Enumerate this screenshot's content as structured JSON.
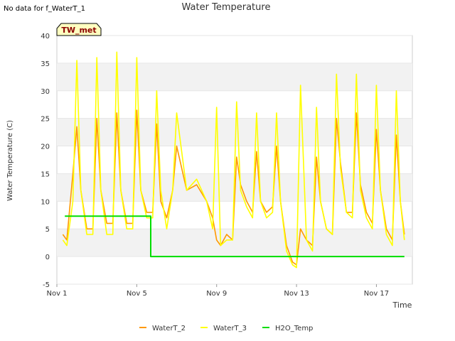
{
  "page": {
    "no_data_note": "No data for f_WaterT_1"
  },
  "chart_data": {
    "type": "line",
    "title": "Water Temperature",
    "xlabel": "Time",
    "ylabel": "Water Temperature (C)",
    "xlim": [
      "Nov 1",
      "Nov 18.8"
    ],
    "ylim": [
      -5,
      40
    ],
    "x_ticks": [
      "Nov 1",
      "Nov 5",
      "Nov 9",
      "Nov 13",
      "Nov 17"
    ],
    "y_ticks": [
      -5,
      0,
      5,
      10,
      15,
      20,
      25,
      30,
      35,
      40
    ],
    "grid": "horizontal alternating bands",
    "station_badge": "TW_met",
    "legend_position": "bottom-center",
    "colors": {
      "WaterT_2": "#ff9900",
      "WaterT_3": "#ffff00",
      "H2O_Temp": "#00dd00",
      "badge_fill": "#ffffc0",
      "badge_text": "#8b0000"
    },
    "series": [
      {
        "name": "WaterT_2",
        "x": [
          "Nov 1.3",
          "Nov 1.5",
          "Nov 1.8",
          "Nov 2.0",
          "Nov 2.2",
          "Nov 2.5",
          "Nov 2.8",
          "Nov 3.0",
          "Nov 3.2",
          "Nov 3.5",
          "Nov 3.8",
          "Nov 4.0",
          "Nov 4.2",
          "Nov 4.5",
          "Nov 4.8",
          "Nov 5.0",
          "Nov 5.2",
          "Nov 5.5",
          "Nov 5.8",
          "Nov 6.0",
          "Nov 6.2",
          "Nov 6.5",
          "Nov 6.8",
          "Nov 7.0",
          "Nov 7.5",
          "Nov 8.0",
          "Nov 8.5",
          "Nov 8.8",
          "Nov 9.0",
          "Nov 9.2",
          "Nov 9.5",
          "Nov 9.8",
          "Nov 10.0",
          "Nov 10.2",
          "Nov 10.5",
          "Nov 10.8",
          "Nov 11.0",
          "Nov 11.2",
          "Nov 11.5",
          "Nov 11.8",
          "Nov 12.0",
          "Nov 12.2",
          "Nov 12.5",
          "Nov 12.8",
          "Nov 13.0",
          "Nov 13.2",
          "Nov 13.5",
          "Nov 13.8",
          "Nov 14.0",
          "Nov 14.2",
          "Nov 14.5",
          "Nov 14.8",
          "Nov 15.0",
          "Nov 15.2",
          "Nov 15.5",
          "Nov 15.8",
          "Nov 16.0",
          "Nov 16.2",
          "Nov 16.5",
          "Nov 16.8",
          "Nov 17.0",
          "Nov 17.2",
          "Nov 17.5",
          "Nov 17.8",
          "Nov 18.0",
          "Nov 18.2",
          "Nov 18.4"
        ],
        "values": [
          4,
          3,
          15,
          23.5,
          12,
          5,
          5,
          25,
          12,
          6,
          6,
          26,
          12,
          6,
          6,
          26.5,
          12,
          8,
          8,
          24,
          10,
          7,
          12,
          20,
          12,
          13,
          10,
          7,
          3,
          2,
          4,
          3,
          18,
          13,
          10,
          8,
          19,
          10,
          8,
          9,
          20,
          10,
          2,
          -1,
          -1.5,
          5,
          3,
          2,
          18,
          10,
          5,
          4,
          25,
          17,
          8,
          8,
          26,
          13,
          8,
          6,
          23,
          12,
          5,
          3,
          22,
          10,
          4
        ],
        "color": "#ff9900"
      },
      {
        "name": "WaterT_3",
        "x": [
          "Nov 1.3",
          "Nov 1.5",
          "Nov 1.8",
          "Nov 2.0",
          "Nov 2.2",
          "Nov 2.5",
          "Nov 2.8",
          "Nov 3.0",
          "Nov 3.2",
          "Nov 3.5",
          "Nov 3.8",
          "Nov 4.0",
          "Nov 4.2",
          "Nov 4.5",
          "Nov 4.8",
          "Nov 5.0",
          "Nov 5.2",
          "Nov 5.5",
          "Nov 5.8",
          "Nov 6.0",
          "Nov 6.2",
          "Nov 6.5",
          "Nov 6.8",
          "Nov 7.0",
          "Nov 7.5",
          "Nov 8.0",
          "Nov 8.5",
          "Nov 8.8",
          "Nov 9.0",
          "Nov 9.2",
          "Nov 9.5",
          "Nov 9.8",
          "Nov 10.0",
          "Nov 10.2",
          "Nov 10.5",
          "Nov 10.8",
          "Nov 11.0",
          "Nov 11.2",
          "Nov 11.5",
          "Nov 11.8",
          "Nov 12.0",
          "Nov 12.2",
          "Nov 12.5",
          "Nov 12.8",
          "Nov 13.0",
          "Nov 13.2",
          "Nov 13.5",
          "Nov 13.8",
          "Nov 14.0",
          "Nov 14.2",
          "Nov 14.5",
          "Nov 14.8",
          "Nov 15.0",
          "Nov 15.2",
          "Nov 15.5",
          "Nov 15.8",
          "Nov 16.0",
          "Nov 16.2",
          "Nov 16.5",
          "Nov 16.8",
          "Nov 17.0",
          "Nov 17.2",
          "Nov 17.5",
          "Nov 17.8",
          "Nov 18.0",
          "Nov 18.2",
          "Nov 18.4"
        ],
        "values": [
          3,
          2,
          10,
          35.5,
          12,
          4,
          4,
          36,
          12,
          4,
          4,
          37,
          12,
          5,
          5,
          36,
          12,
          7,
          7,
          30,
          12,
          5,
          12,
          26,
          12,
          14,
          10,
          5,
          27,
          2,
          3,
          3,
          28,
          12,
          9,
          7,
          26,
          10,
          7,
          8,
          26,
          10,
          1,
          -1.5,
          -2,
          31,
          3,
          1,
          27,
          10,
          5,
          4,
          33,
          16,
          8,
          7,
          33,
          12,
          7,
          5,
          31,
          12,
          4,
          2,
          30,
          10,
          3
        ],
        "color": "#ffff00"
      },
      {
        "name": "H2O_Temp",
        "x": [
          "Nov 1.4",
          "Nov 5.7",
          "Nov 5.7",
          "Nov 18.4"
        ],
        "values": [
          7.3,
          7.3,
          0,
          0
        ],
        "color": "#00dd00"
      }
    ]
  }
}
